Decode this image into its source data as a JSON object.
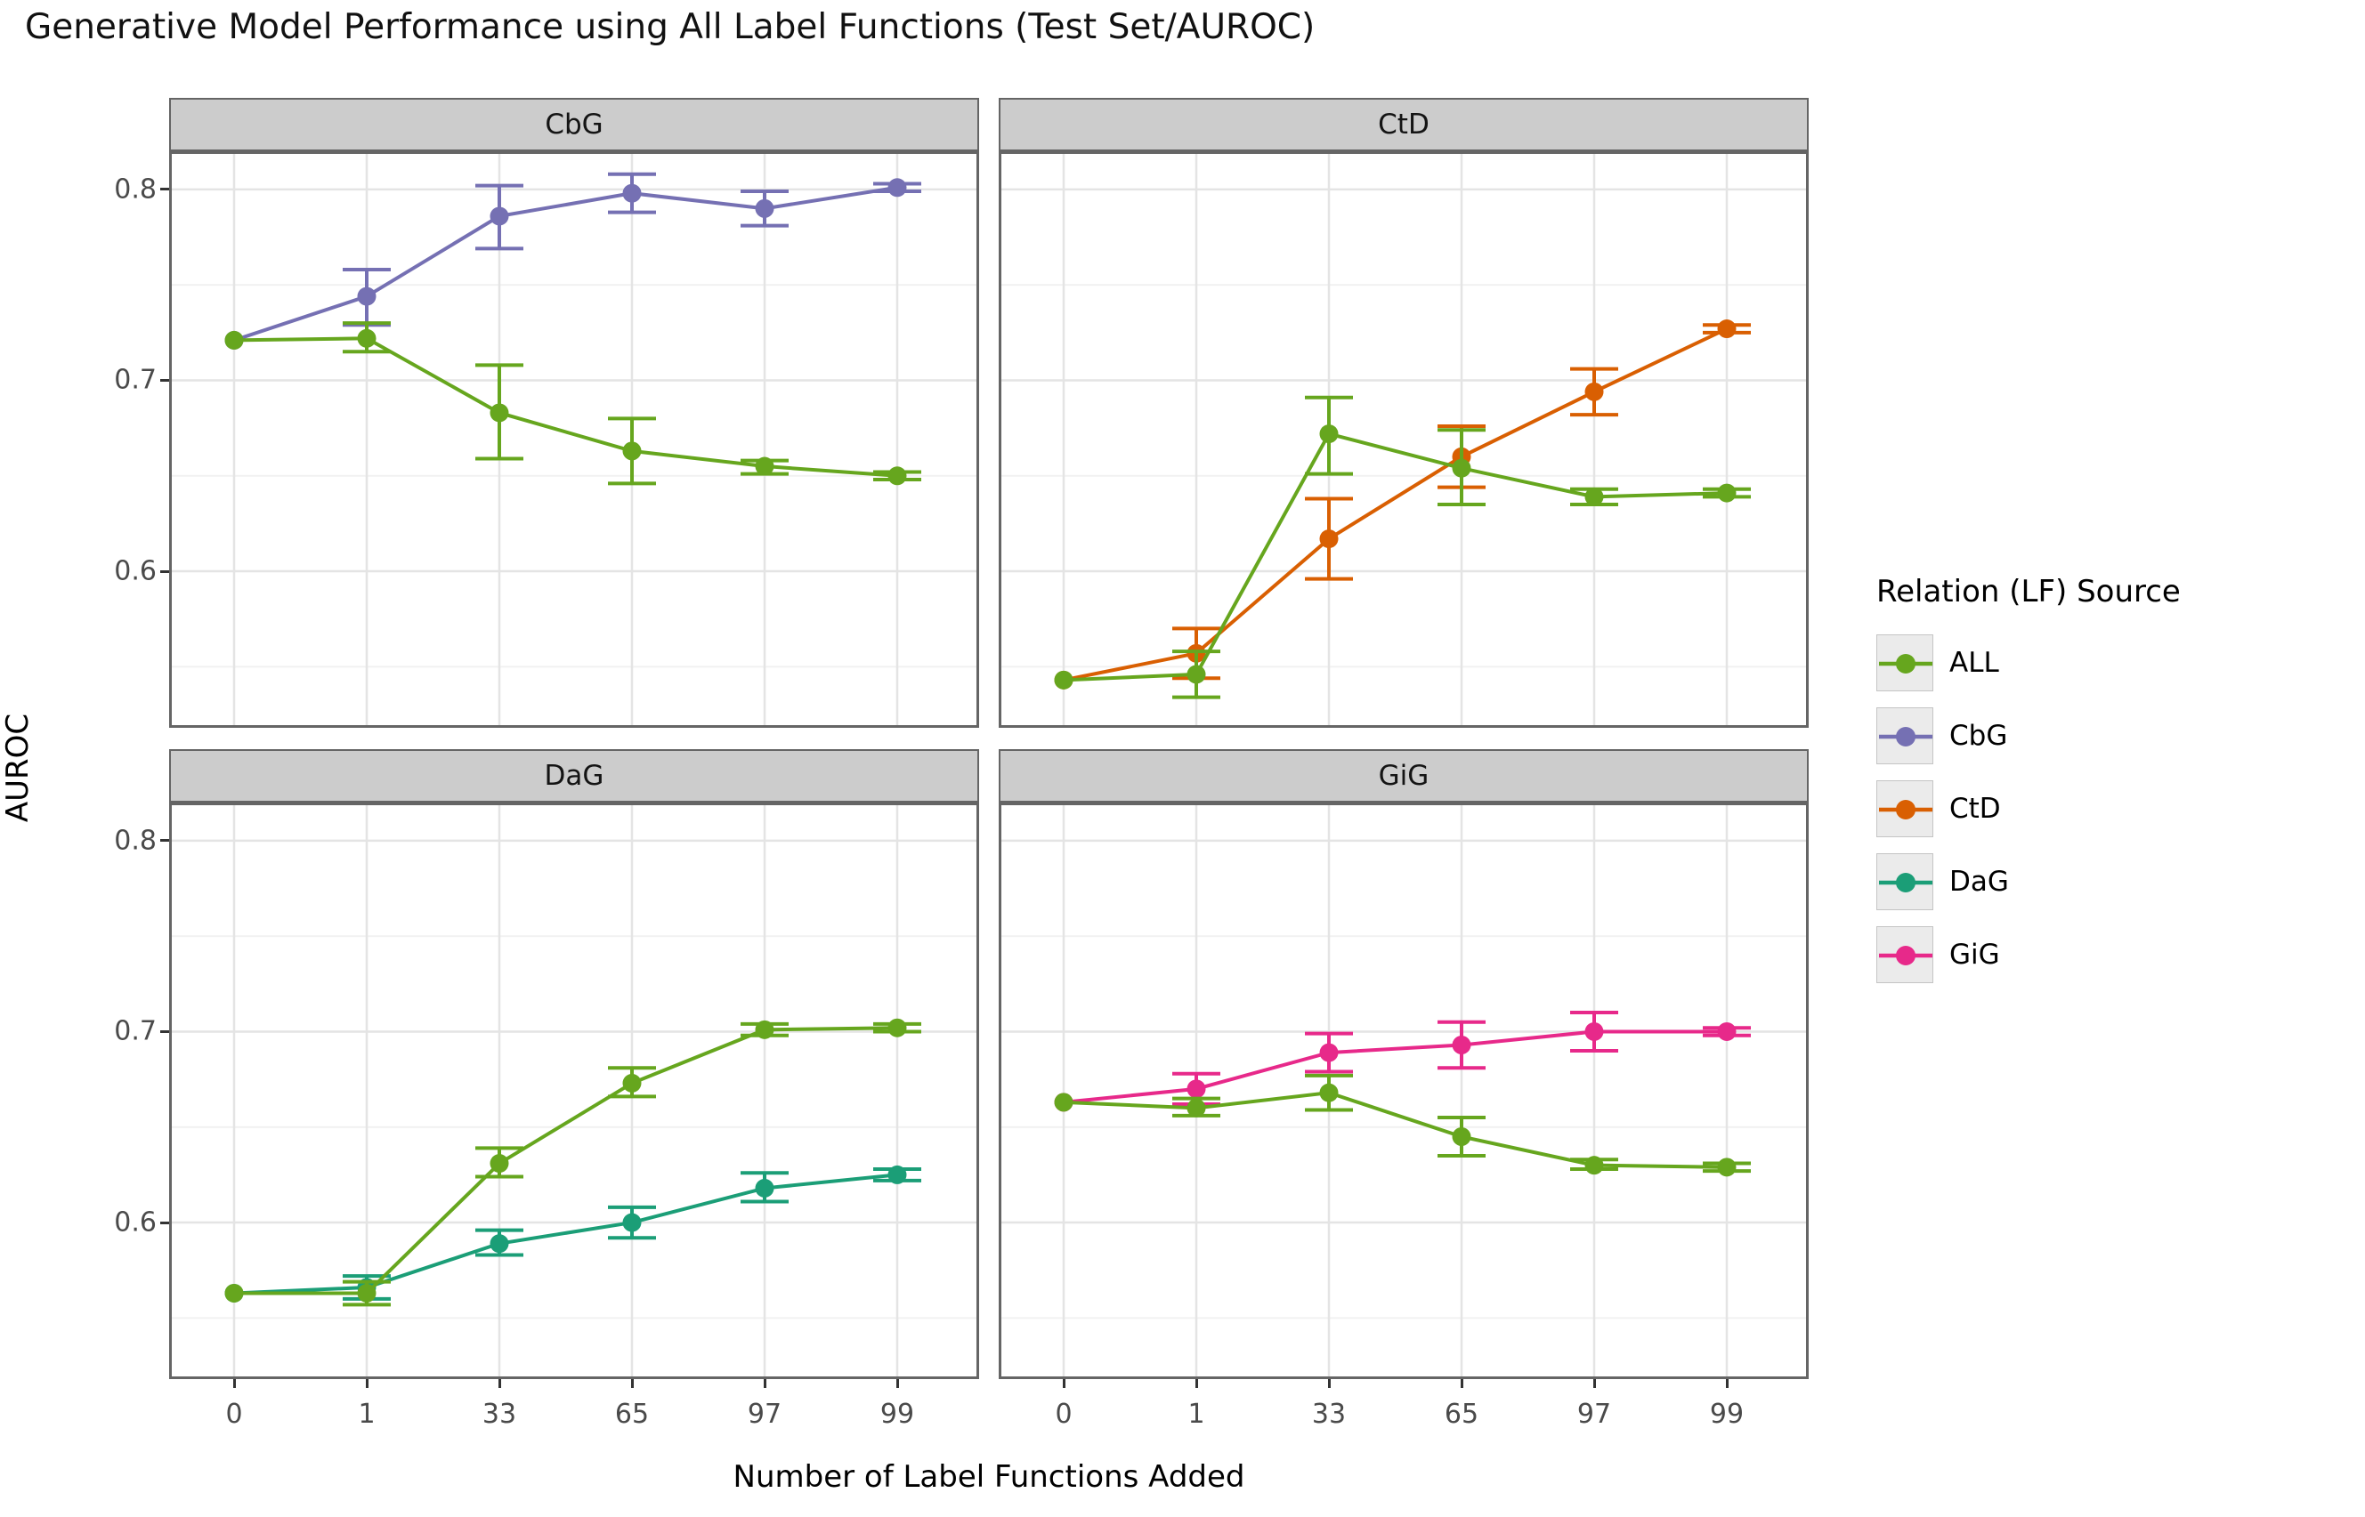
{
  "title": "Generative Model Performance using All Label Functions (Test Set/AUROC)",
  "axes": {
    "x_title": "Number of Label Functions Added",
    "y_title": "AUROC",
    "x_ticks": [
      "0",
      "1",
      "33",
      "65",
      "97",
      "99"
    ],
    "y_ticks": [
      "0.8",
      "0.7",
      "0.6"
    ],
    "y_tick_values": [
      0.8,
      0.7,
      0.6
    ]
  },
  "legend": {
    "title": "Relation (LF) Source",
    "entries": [
      {
        "label": "ALL",
        "color": "#66a61e"
      },
      {
        "label": "CbG",
        "color": "#7570b3"
      },
      {
        "label": "CtD",
        "color": "#d95f02"
      },
      {
        "label": "DaG",
        "color": "#1b9e77"
      },
      {
        "label": "GiG",
        "color": "#e7298a"
      }
    ]
  },
  "style": {
    "grid_major": "#e4e4e4",
    "grid_minor": "#f1f1f1",
    "panel_border": "#656565",
    "strip_bg": "#cccccc",
    "tick_color": "#333333",
    "tick_label_color": "#4a4a4a"
  },
  "chart_data": {
    "type": "line",
    "x_categories": [
      0,
      1,
      33,
      65,
      97,
      99
    ],
    "ylim": [
      0.518,
      0.82
    ],
    "grid": {
      "major": [
        0.6,
        0.7,
        0.8
      ],
      "minor": [
        0.55,
        0.65,
        0.75
      ]
    },
    "legend_position": "right",
    "panels": [
      {
        "facet": "CbG",
        "series": [
          {
            "name": "ALL",
            "color": "#66a61e",
            "values": [
              0.721,
              0.722,
              0.683,
              0.663,
              0.655,
              0.65
            ],
            "lower": [
              0.721,
              0.715,
              0.659,
              0.646,
              0.651,
              0.648
            ],
            "upper": [
              0.721,
              0.73,
              0.708,
              0.68,
              0.658,
              0.652
            ]
          },
          {
            "name": "CbG",
            "color": "#7570b3",
            "values": [
              0.721,
              0.744,
              0.786,
              0.798,
              0.79,
              0.801
            ],
            "lower": [
              0.721,
              0.729,
              0.769,
              0.788,
              0.781,
              0.799
            ],
            "upper": [
              0.721,
              0.758,
              0.802,
              0.808,
              0.799,
              0.803
            ]
          }
        ]
      },
      {
        "facet": "CtD",
        "series": [
          {
            "name": "ALL",
            "color": "#66a61e",
            "values": [
              0.543,
              0.546,
              0.672,
              0.654,
              0.639,
              0.641
            ],
            "lower": [
              0.543,
              0.534,
              0.651,
              0.635,
              0.635,
              0.639
            ],
            "upper": [
              0.543,
              0.558,
              0.691,
              0.674,
              0.643,
              0.643
            ]
          },
          {
            "name": "CtD",
            "color": "#d95f02",
            "values": [
              0.543,
              0.557,
              0.617,
              0.66,
              0.694,
              0.727
            ],
            "lower": [
              0.543,
              0.544,
              0.596,
              0.644,
              0.682,
              0.725
            ],
            "upper": [
              0.543,
              0.57,
              0.638,
              0.676,
              0.706,
              0.729
            ]
          }
        ]
      },
      {
        "facet": "DaG",
        "series": [
          {
            "name": "ALL",
            "color": "#66a61e",
            "values": [
              0.563,
              0.563,
              0.631,
              0.673,
              0.701,
              0.702
            ],
            "lower": [
              0.563,
              0.557,
              0.624,
              0.666,
              0.698,
              0.7
            ],
            "upper": [
              0.563,
              0.569,
              0.639,
              0.681,
              0.704,
              0.704
            ]
          },
          {
            "name": "DaG",
            "color": "#1b9e77",
            "values": [
              0.563,
              0.566,
              0.589,
              0.6,
              0.618,
              0.625
            ],
            "lower": [
              0.563,
              0.56,
              0.583,
              0.592,
              0.611,
              0.622
            ],
            "upper": [
              0.563,
              0.572,
              0.596,
              0.608,
              0.626,
              0.628
            ]
          }
        ]
      },
      {
        "facet": "GiG",
        "series": [
          {
            "name": "ALL",
            "color": "#66a61e",
            "values": [
              0.663,
              0.66,
              0.668,
              0.645,
              0.63,
              0.629
            ],
            "lower": [
              0.663,
              0.656,
              0.659,
              0.635,
              0.628,
              0.627
            ],
            "upper": [
              0.663,
              0.665,
              0.677,
              0.655,
              0.633,
              0.631
            ]
          },
          {
            "name": "GiG",
            "color": "#e7298a",
            "values": [
              0.663,
              0.67,
              0.689,
              0.693,
              0.7,
              0.7
            ],
            "lower": [
              0.663,
              0.662,
              0.679,
              0.681,
              0.69,
              0.698
            ],
            "upper": [
              0.663,
              0.678,
              0.699,
              0.705,
              0.71,
              0.702
            ]
          }
        ]
      }
    ]
  }
}
